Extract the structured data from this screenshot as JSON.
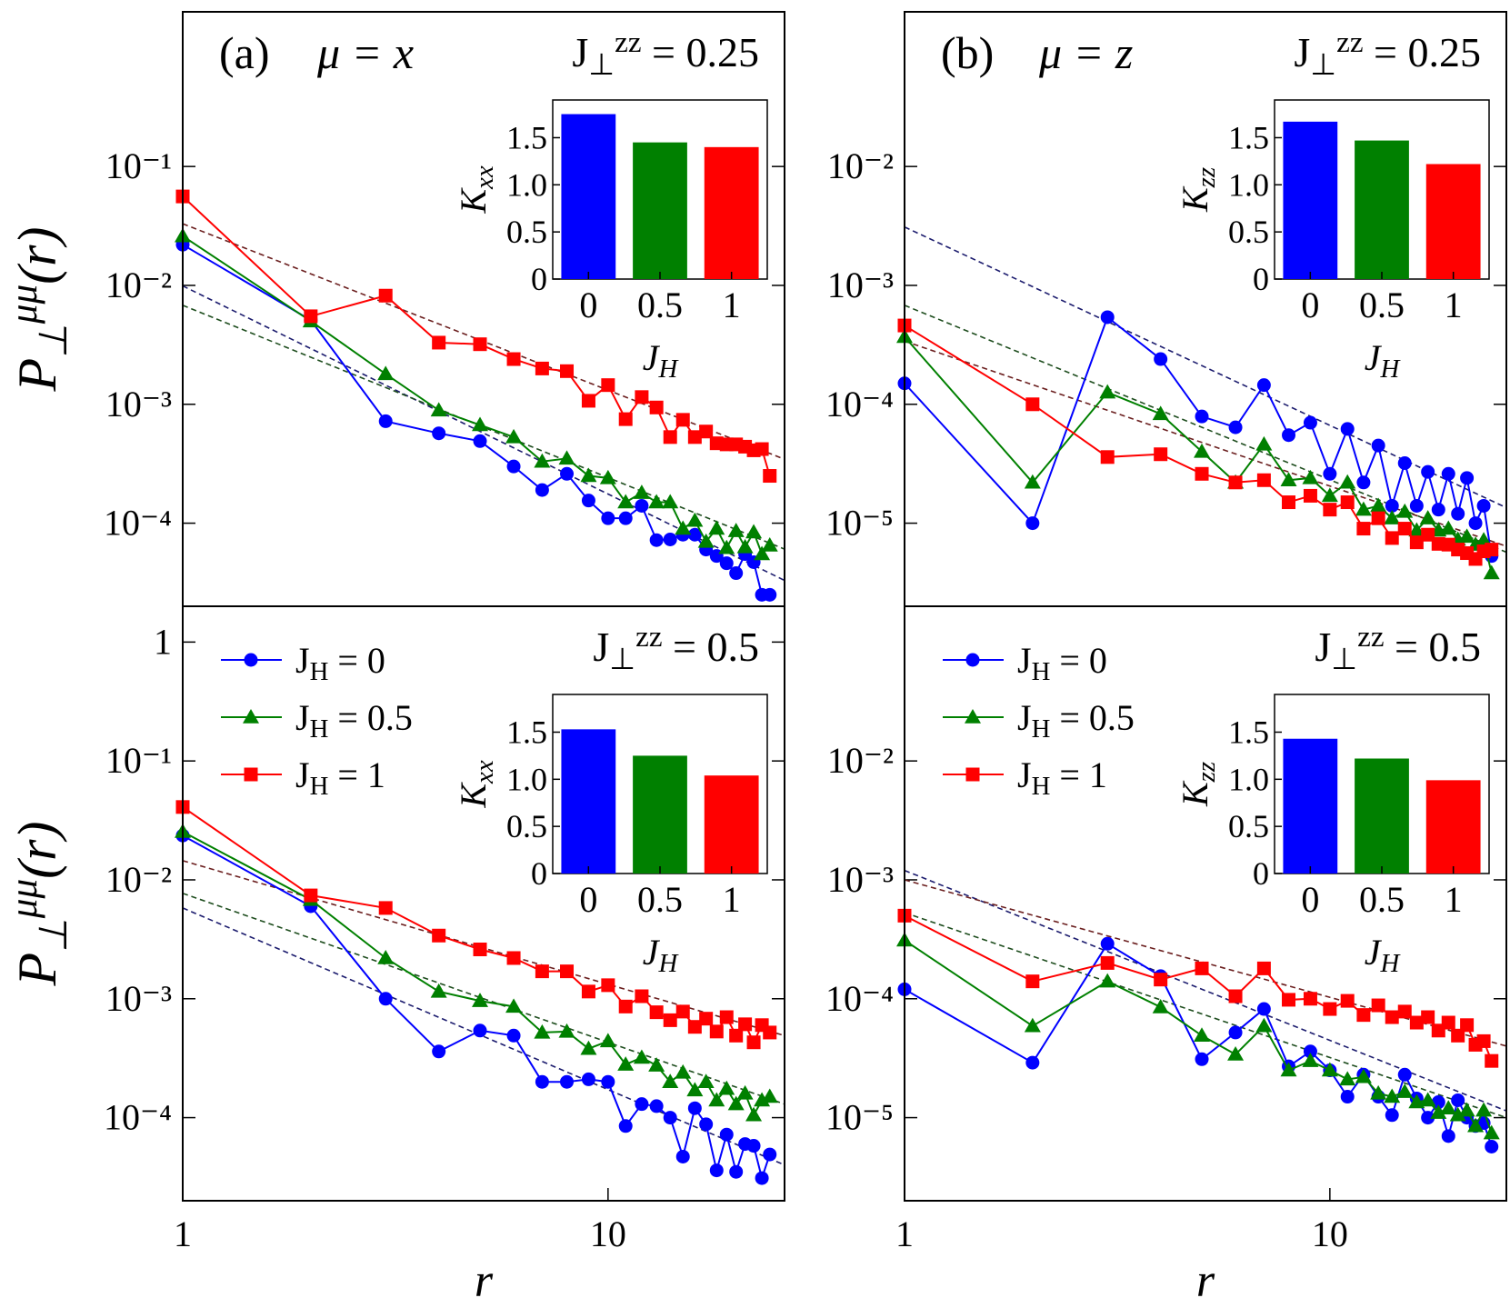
{
  "chart_data": [
    {
      "type": "line",
      "label": "(a)",
      "title": "μ = x",
      "annotation": [
        {
          "text": "J"
        },
        {
          "sub": "⊥"
        },
        {
          "sup": "zz"
        },
        {
          "text": " = 0.25"
        }
      ],
      "ylabel": [
        {
          "text": "P"
        },
        {
          "sub": "⊥"
        },
        {
          "sup": "μμ"
        },
        {
          "text": "(r)"
        }
      ],
      "log_x": true,
      "log_y": true,
      "xlim": [
        1,
        26
      ],
      "ylim": [
        2e-05,
        2
      ],
      "yticks": [
        {
          "value": 0.1,
          "label": "10⁻¹"
        },
        {
          "value": 0.01,
          "label": "10⁻²"
        },
        {
          "value": 0.001,
          "label": "10⁻³"
        },
        {
          "value": 0.0001,
          "label": "10⁻⁴"
        }
      ],
      "x": [
        1,
        2,
        3,
        4,
        5,
        6,
        7,
        8,
        9,
        10,
        11,
        12,
        13,
        14,
        15,
        16,
        17,
        18,
        19,
        20,
        21,
        22,
        23,
        24
      ],
      "series": [
        {
          "color": "#0000ff",
          "marker": "circle",
          "values": [
            0.022,
            0.0051,
            0.00072,
            0.00057,
            0.00049,
            0.0003,
            0.00019,
            0.00026,
            0.000155,
            0.00011,
            0.00011,
            0.00014,
            7.2e-05,
            7.3e-05,
            8e-05,
            8e-05,
            6e-05,
            5.3e-05,
            4.6e-05,
            3.8e-05,
            5.5e-05,
            4.7e-05,
            2.5e-05,
            2.5e-05
          ]
        },
        {
          "color": "#008000",
          "marker": "triangle",
          "values": [
            0.026,
            0.005,
            0.0018,
            0.00089,
            0.00067,
            0.00053,
            0.00033,
            0.00035,
            0.00025,
            0.00024,
            0.00015,
            0.00018,
            0.00015,
            0.00015,
            9e-05,
            0.000105,
            7e-05,
            9e-05,
            6.2e-05,
            8.6e-05,
            6.3e-05,
            8.4e-05,
            5.5e-05,
            6.5e-05
          ]
        },
        {
          "color": "#ff0000",
          "marker": "square",
          "values": [
            0.056,
            0.0055,
            0.0082,
            0.0033,
            0.0032,
            0.0024,
            0.002,
            0.0019,
            0.00107,
            0.00145,
            0.00075,
            0.00115,
            0.00094,
            0.00053,
            0.00074,
            0.00053,
            0.00059,
            0.00047,
            0.00046,
            0.00046,
            0.00044,
            0.00041,
            0.00042,
            0.00025
          ]
        }
      ],
      "fits": [
        {
          "color": "#1c1c6e",
          "x": [
            1,
            26
          ],
          "values": [
            0.0099,
            3.3e-05
          ]
        },
        {
          "color": "#1e4d1e",
          "x": [
            1,
            26
          ],
          "values": [
            0.0068,
            6.05e-05
          ]
        },
        {
          "color": "#6b1f1f",
          "x": [
            1,
            26
          ],
          "values": [
            0.033,
            0.000345
          ]
        }
      ],
      "inset": {
        "type": "bar",
        "categories": [
          "0",
          "0.5",
          "1"
        ],
        "values": [
          1.75,
          1.45,
          1.4
        ],
        "colors": [
          "#0000ff",
          "#008000",
          "#ff0000"
        ],
        "ylim": [
          0,
          1.9
        ],
        "yticks": [
          0,
          0.5,
          {
            "value": 1,
            "label": "1.0"
          },
          1.5
        ],
        "xlabel": [
          {
            "text": "J"
          },
          {
            "sub": "H"
          }
        ],
        "ylabel": [
          {
            "text": "K"
          },
          {
            "sub": "xx"
          }
        ]
      }
    },
    {
      "type": "line",
      "label": "(b)",
      "title": "μ = z",
      "annotation": [
        {
          "text": "J"
        },
        {
          "sub": "⊥"
        },
        {
          "sup": "zz"
        },
        {
          "text": " = 0.25"
        }
      ],
      "log_x": true,
      "log_y": true,
      "xlim": [
        1,
        26
      ],
      "ylim": [
        2e-06,
        0.2
      ],
      "yticks": [
        {
          "value": 0.01,
          "label": "10⁻²"
        },
        {
          "value": 0.001,
          "label": "10⁻³"
        },
        {
          "value": 0.0001,
          "label": "10⁻⁴"
        },
        {
          "value": 1e-05,
          "label": "10⁻⁵"
        }
      ],
      "x": [
        1,
        2,
        3,
        4,
        5,
        6,
        7,
        8,
        9,
        10,
        11,
        12,
        13,
        14,
        15,
        16,
        17,
        18,
        19,
        20,
        21,
        22,
        23,
        24
      ],
      "series": [
        {
          "color": "#0000ff",
          "marker": "circle",
          "values": [
            0.00015,
            1e-05,
            0.00054,
            0.00024,
            7.9e-05,
            6.4e-05,
            0.000145,
            5.5e-05,
            7e-05,
            2.6e-05,
            6.2e-05,
            2.2e-05,
            4.5e-05,
            1.4e-05,
            3.2e-05,
            1.4e-05,
            2.7e-05,
            1.3e-05,
            2.6e-05,
            1.2e-05,
            2.4e-05,
            1e-05,
            1.4e-05,
            5.3e-06
          ]
        },
        {
          "color": "#008000",
          "marker": "triangle",
          "values": [
            0.00037,
            2.2e-05,
            0.000126,
            8.3e-05,
            4e-05,
            2.2e-05,
            4.6e-05,
            2.3e-05,
            2.4e-05,
            1.7e-05,
            2.2e-05,
            1.3e-05,
            1.4e-05,
            1.1e-05,
            1.25e-05,
            8.7e-06,
            1.1e-05,
            8.7e-06,
            9e-06,
            7.3e-06,
            7.7e-06,
            6.6e-06,
            7.2e-06,
            3.8e-06
          ]
        },
        {
          "color": "#ff0000",
          "marker": "square",
          "values": [
            0.00046,
            0.0001,
            3.6e-05,
            3.8e-05,
            2.6e-05,
            2.2e-05,
            2.3e-05,
            1.5e-05,
            1.7e-05,
            1.3e-05,
            1.5e-05,
            9e-06,
            1.1e-05,
            7.5e-06,
            9e-06,
            6.9e-06,
            8e-06,
            6.7e-06,
            6.6e-06,
            6e-06,
            5.6e-06,
            5e-06,
            5.8e-06,
            6e-06
          ]
        }
      ],
      "fits": [
        {
          "color": "#1c1c6e",
          "x": [
            1,
            26
          ],
          "values": [
            0.0031,
            1.35e-05
          ]
        },
        {
          "color": "#1e4d1e",
          "x": [
            1,
            26
          ],
          "values": [
            0.00068,
            5.7e-06
          ]
        },
        {
          "color": "#6b1f1f",
          "x": [
            1,
            26
          ],
          "values": [
            0.00034,
            6.4e-06
          ]
        }
      ],
      "inset": {
        "type": "bar",
        "categories": [
          "0",
          "0.5",
          "1"
        ],
        "values": [
          1.67,
          1.47,
          1.22
        ],
        "colors": [
          "#0000ff",
          "#008000",
          "#ff0000"
        ],
        "ylim": [
          0,
          1.9
        ],
        "yticks": [
          0,
          0.5,
          {
            "value": 1,
            "label": "1.0"
          },
          1.5
        ],
        "xlabel": [
          {
            "text": "J"
          },
          {
            "sub": "H"
          }
        ],
        "ylabel": [
          {
            "text": "K"
          },
          {
            "sub": "zz"
          }
        ]
      }
    },
    {
      "type": "line",
      "annotation": [
        {
          "text": "J"
        },
        {
          "sub": "⊥"
        },
        {
          "sup": "zz"
        },
        {
          "text": " = 0.5"
        }
      ],
      "ylabel": [
        {
          "text": "P"
        },
        {
          "sub": "⊥"
        },
        {
          "sup": "μμ"
        },
        {
          "text": "(r)"
        }
      ],
      "xlabel": "r",
      "legend": "upper left",
      "log_x": true,
      "log_y": true,
      "xlim": [
        1,
        26
      ],
      "ylim": [
        2e-05,
        2
      ],
      "xticks": [
        1,
        10
      ],
      "yticks": [
        1,
        {
          "value": 0.1,
          "label": "10⁻¹"
        },
        {
          "value": 0.01,
          "label": "10⁻²"
        },
        {
          "value": 0.001,
          "label": "10⁻³"
        },
        {
          "value": 0.0001,
          "label": "10⁻⁴"
        }
      ],
      "x": [
        1,
        2,
        3,
        4,
        5,
        6,
        7,
        8,
        9,
        10,
        11,
        12,
        13,
        14,
        15,
        16,
        17,
        18,
        19,
        20,
        21,
        22,
        23,
        24
      ],
      "series": [
        {
          "name": [
            {
              "text": "J"
            },
            {
              "sub": "H"
            },
            {
              "text": " = 0"
            }
          ],
          "color": "#0000ff",
          "marker": "circle",
          "values": [
            0.0236,
            0.006,
            0.001,
            0.00036,
            0.00054,
            0.00049,
            0.0002,
            0.0002,
            0.00021,
            0.0002,
            8.5e-05,
            0.00013,
            0.000125,
            0.0001,
            4.7e-05,
            0.00012,
            8.8e-05,
            3.6e-05,
            7.2e-05,
            3.5e-05,
            6e-05,
            5.8e-05,
            3.1e-05,
            4.9e-05
          ]
        },
        {
          "name": [
            {
              "text": "J"
            },
            {
              "sub": "H"
            },
            {
              "text": " = 0.5"
            }
          ],
          "color": "#008000",
          "marker": "triangle",
          "values": [
            0.0254,
            0.0068,
            0.0022,
            0.00115,
            0.00096,
            0.00086,
            0.00052,
            0.00053,
            0.00038,
            0.00044,
            0.00028,
            0.00032,
            0.000275,
            0.0002,
            0.00024,
            0.00017,
            0.0002,
            0.00014,
            0.000175,
            0.00013,
            0.00016,
            0.000105,
            0.00014,
            0.00015
          ]
        },
        {
          "name": [
            {
              "text": "J"
            },
            {
              "sub": "H"
            },
            {
              "text": " = 1"
            }
          ],
          "color": "#ff0000",
          "marker": "square",
          "values": [
            0.041,
            0.0074,
            0.0058,
            0.0034,
            0.0026,
            0.0022,
            0.0017,
            0.0017,
            0.00115,
            0.0013,
            0.00086,
            0.00105,
            0.00077,
            0.00066,
            0.00078,
            0.00058,
            0.00068,
            0.00053,
            0.0007,
            0.00049,
            0.00061,
            0.00043,
            0.0006,
            0.00052
          ]
        }
      ],
      "fits": [
        {
          "color": "#1c1c6e",
          "x": [
            1,
            26
          ],
          "values": [
            0.0058,
            4e-05
          ]
        },
        {
          "color": "#1e4d1e",
          "x": [
            1,
            26
          ],
          "values": [
            0.0077,
            0.00013
          ]
        },
        {
          "color": "#6b1f1f",
          "x": [
            1,
            26
          ],
          "values": [
            0.0145,
            0.00049
          ]
        }
      ],
      "inset": {
        "type": "bar",
        "categories": [
          "0",
          "0.5",
          "1"
        ],
        "values": [
          1.53,
          1.25,
          1.04
        ],
        "colors": [
          "#0000ff",
          "#008000",
          "#ff0000"
        ],
        "ylim": [
          0,
          1.9
        ],
        "yticks": [
          0,
          0.5,
          {
            "value": 1,
            "label": "1.0"
          },
          1.5
        ],
        "xlabel": [
          {
            "text": "J"
          },
          {
            "sub": "H"
          }
        ],
        "ylabel": [
          {
            "text": "K"
          },
          {
            "sub": "xx"
          }
        ]
      }
    },
    {
      "type": "line",
      "annotation": [
        {
          "text": "J"
        },
        {
          "sub": "⊥"
        },
        {
          "sup": "zz"
        },
        {
          "text": " = 0.5"
        }
      ],
      "xlabel": "r",
      "legend": "upper left",
      "log_x": true,
      "log_y": true,
      "xlim": [
        1,
        26
      ],
      "ylim": [
        2e-06,
        0.2
      ],
      "xticks": [
        1,
        10
      ],
      "yticks": [
        {
          "value": 0.01,
          "label": "10⁻²"
        },
        {
          "value": 0.001,
          "label": "10⁻³"
        },
        {
          "value": 0.0001,
          "label": "10⁻⁴"
        },
        {
          "value": 1e-05,
          "label": "10⁻⁵"
        }
      ],
      "x": [
        1,
        2,
        3,
        4,
        5,
        6,
        7,
        8,
        9,
        10,
        11,
        12,
        13,
        14,
        15,
        16,
        17,
        18,
        19,
        20,
        21,
        22,
        23,
        24
      ],
      "series": [
        {
          "name": [
            {
              "text": "J"
            },
            {
              "sub": "H"
            },
            {
              "text": " = 0"
            }
          ],
          "color": "#0000ff",
          "marker": "circle",
          "values": [
            0.00012,
            2.9e-05,
            0.00029,
            0.000155,
            3.1e-05,
            5.2e-05,
            8.2e-05,
            2.7e-05,
            3.6e-05,
            2.5e-05,
            1.5e-05,
            2.3e-05,
            1.5e-05,
            1.05e-05,
            2.3e-05,
            1.45e-05,
            1e-05,
            1.35e-05,
            7e-06,
            1.4e-05,
            1e-05,
            8.5e-06,
            9e-06,
            5.7e-06
          ]
        },
        {
          "name": [
            {
              "text": "J"
            },
            {
              "sub": "H"
            },
            {
              "text": " = 0.5"
            }
          ],
          "color": "#008000",
          "marker": "triangle",
          "values": [
            0.00031,
            5.9e-05,
            0.00014,
            8.5e-05,
            4.9e-05,
            3.4e-05,
            5.9e-05,
            2.5e-05,
            3e-05,
            2.5e-05,
            2.1e-05,
            2.2e-05,
            1.6e-05,
            1.5e-05,
            1.65e-05,
            1.35e-05,
            1.4e-05,
            1.1e-05,
            1.2e-05,
            1.05e-05,
            1.15e-05,
            8.5e-06,
            1.15e-05,
            7.4e-06
          ]
        },
        {
          "name": [
            {
              "text": "J"
            },
            {
              "sub": "H"
            },
            {
              "text": " = 1"
            }
          ],
          "color": "#ff0000",
          "marker": "square",
          "values": [
            0.0005,
            0.00014,
            0.0002,
            0.000145,
            0.00018,
            0.000105,
            0.00018,
            9.8e-05,
            0.0001,
            8.2e-05,
            9.6e-05,
            7.3e-05,
            8.8e-05,
            7e-05,
            7.8e-05,
            6.3e-05,
            7e-05,
            5.4e-05,
            6.3e-05,
            4.9e-05,
            6e-05,
            4.1e-05,
            4.4e-05,
            3e-05
          ]
        }
      ],
      "fits": [
        {
          "color": "#1c1c6e",
          "x": [
            1,
            26
          ],
          "values": [
            0.0012,
            1.14e-05
          ]
        },
        {
          "color": "#1e4d1e",
          "x": [
            1,
            26
          ],
          "values": [
            0.00053,
            1e-05
          ]
        },
        {
          "color": "#6b1f1f",
          "x": [
            1,
            26
          ],
          "values": [
            0.001,
            4e-05
          ]
        }
      ],
      "inset": {
        "type": "bar",
        "categories": [
          "0",
          "0.5",
          "1"
        ],
        "values": [
          1.43,
          1.22,
          0.99
        ],
        "colors": [
          "#0000ff",
          "#008000",
          "#ff0000"
        ],
        "ylim": [
          0,
          1.9
        ],
        "yticks": [
          0,
          0.5,
          {
            "value": 1,
            "label": "1.0"
          },
          1.5
        ],
        "xlabel": [
          {
            "text": "J"
          },
          {
            "sub": "H"
          }
        ],
        "ylabel": [
          {
            "text": "K"
          },
          {
            "sub": "zz"
          }
        ]
      }
    }
  ]
}
